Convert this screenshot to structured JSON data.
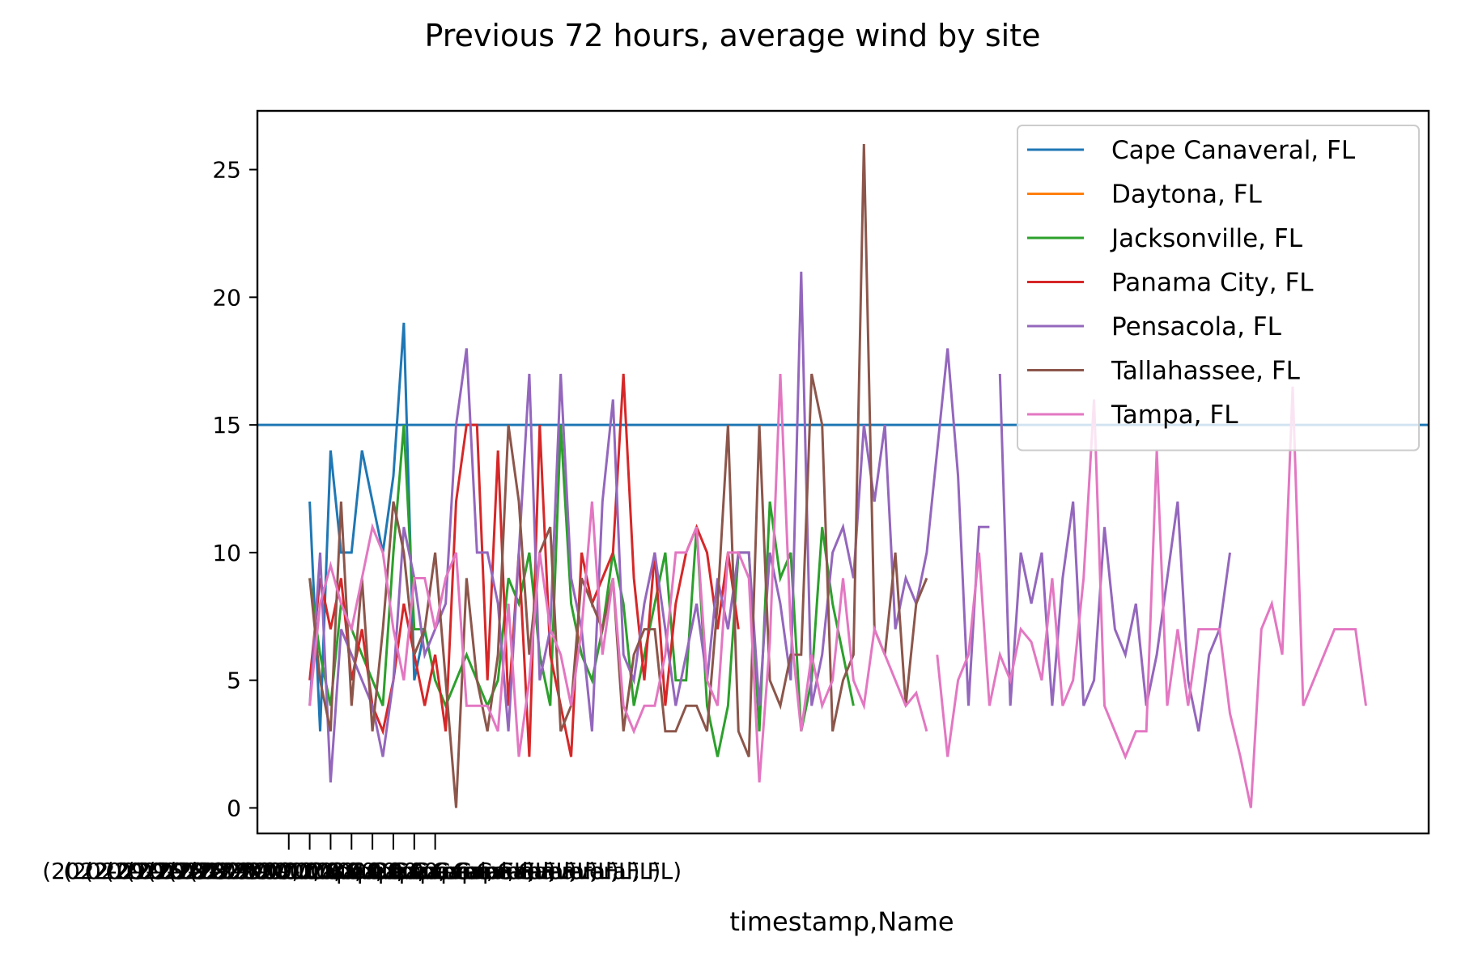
{
  "chart_data": {
    "type": "line",
    "title": "Previous 72 hours, average wind by site",
    "xlabel": "timestamp,Name",
    "ylabel": "",
    "ylim": [
      -1.0,
      27.3
    ],
    "xlim": [
      -3,
      109
    ],
    "yticks": [
      0,
      5,
      10,
      15,
      20,
      25
    ],
    "grid": false,
    "legend": "top-right",
    "xtick_labels": [
      "(2022-09-26 21:00:00, Cape Canaveral, FL)",
      "(2022-09-26 22:00:00, Cape Canaveral, FL)",
      "(2022-09-26 23:00:00, Cape Canaveral, FL)",
      "(2022-09-27 00:00:00, Cape Canaveral, FL)",
      "(2022-09-27 01:00:00, Cape Canaveral, FL)",
      "(2022-09-27 02:00:00, Cape Canaveral, FL)",
      "(2022-09-27 03:00:00, Cape Canaveral, FL)",
      "(2022-09-27 04:00:00, Cape Canaveral, FL)"
    ],
    "xtick_positions": [
      0,
      2,
      4,
      6,
      8,
      10,
      12,
      14
    ],
    "series": [
      {
        "name": "Cape Canaveral, FL",
        "color": "#1f77b4",
        "x": [
          -3,
          109
        ],
        "y": [
          15,
          15
        ]
      },
      {
        "name": "Cape Canaveral, FL",
        "color": "#1f77b4",
        "x": [
          2,
          3,
          4,
          5,
          6,
          7,
          8,
          9,
          10,
          11,
          12,
          13
        ],
        "y": [
          12,
          3,
          14,
          10,
          10,
          14,
          12,
          10,
          13,
          19,
          5,
          7
        ]
      },
      {
        "name": "Daytona, FL",
        "color": "#ff7f0e",
        "x": [],
        "y": []
      },
      {
        "name": "Jacksonville, FL",
        "color": "#2ca02c",
        "x": [
          2,
          3,
          4,
          5,
          6,
          7,
          8,
          9,
          10,
          11,
          12,
          13,
          14,
          15,
          16,
          17,
          18,
          19,
          20,
          21,
          22,
          23,
          24,
          25,
          26,
          27,
          28,
          29,
          30,
          31,
          32,
          33,
          34,
          35,
          36,
          37,
          38,
          39,
          40,
          41,
          42,
          43,
          44,
          45,
          46,
          47,
          48,
          49,
          50,
          51,
          52,
          53,
          54
        ],
        "y": [
          9,
          6,
          4,
          8,
          7,
          6,
          5,
          4,
          10,
          15,
          7,
          7,
          5,
          4,
          5,
          6,
          5,
          4,
          5,
          9,
          8,
          10,
          6,
          4,
          15,
          8,
          6,
          5,
          7,
          10,
          8,
          4,
          6,
          8,
          10,
          5,
          5,
          11,
          4,
          2,
          4,
          10,
          10,
          3,
          12,
          9,
          10,
          3,
          5,
          11,
          8,
          6,
          4
        ]
      },
      {
        "name": "Panama City, FL",
        "color": "#d62728",
        "x": [
          2,
          3,
          4,
          5,
          6,
          7,
          8,
          9,
          10,
          11,
          12,
          13,
          14,
          15,
          16,
          17,
          18,
          19,
          20,
          21,
          22,
          23,
          24,
          25,
          26,
          27,
          28,
          29,
          30,
          31,
          32,
          33,
          34,
          35,
          36,
          37,
          38,
          39,
          40,
          41,
          42,
          43
        ],
        "y": [
          5,
          9,
          7,
          9,
          5,
          7,
          4,
          3,
          5,
          8,
          6,
          4,
          6,
          3,
          12,
          15,
          15,
          5,
          14,
          4,
          10,
          2,
          15,
          6,
          4,
          2,
          10,
          8,
          9,
          10,
          17,
          9,
          5,
          10,
          4,
          8,
          10,
          11,
          10,
          7,
          10,
          7
        ]
      },
      {
        "name": "Pensacola, FL",
        "color": "#9467bd",
        "x": [
          2,
          3,
          4,
          5,
          6,
          7,
          8,
          9,
          10,
          11,
          12,
          13,
          14,
          15,
          16,
          17,
          18,
          19,
          20,
          21,
          22,
          23,
          24,
          25,
          26,
          27,
          28,
          29,
          30,
          31,
          32,
          33,
          34,
          35,
          36,
          37,
          38,
          39,
          40,
          41,
          42,
          43,
          44,
          45,
          46,
          47,
          48,
          49,
          50,
          51,
          52,
          53,
          54,
          55,
          56,
          57,
          58,
          59,
          60,
          61,
          62,
          63,
          64,
          65,
          66,
          67
        ],
        "y": [
          4,
          10,
          1,
          7,
          6,
          5,
          4,
          2,
          5,
          11,
          9,
          6,
          7,
          8,
          15,
          18,
          10,
          10,
          8,
          3,
          10,
          17,
          5,
          7,
          17,
          9,
          7,
          3,
          12,
          16,
          6,
          5,
          8,
          10,
          7,
          4,
          6,
          8,
          5,
          9,
          7,
          10,
          10,
          4,
          10,
          8,
          5,
          21,
          4,
          6,
          10,
          11,
          9,
          15,
          12,
          15,
          7,
          9,
          8,
          10,
          14,
          18,
          13,
          4,
          11,
          11
        ]
      },
      {
        "name": "Pensacola, FL",
        "color": "#9467bd",
        "x": [
          68,
          69,
          70,
          71,
          72,
          73,
          74,
          75,
          76,
          77,
          78,
          79,
          80,
          81,
          82,
          83,
          84,
          85,
          86,
          87,
          88,
          89,
          90
        ],
        "y": [
          17,
          4,
          10,
          8,
          10,
          4,
          9,
          12,
          4,
          5,
          11,
          7,
          6,
          8,
          4,
          6,
          9,
          12,
          5,
          3,
          6,
          7,
          10
        ]
      },
      {
        "name": "Tallahassee, FL",
        "color": "#8c564b",
        "x": [
          2,
          3,
          4,
          5,
          6,
          7,
          8,
          9,
          10,
          11,
          12,
          13,
          14,
          15,
          16,
          17,
          18,
          19,
          20,
          21,
          22,
          23,
          24,
          25,
          26,
          27,
          28,
          29,
          30,
          31,
          32,
          33,
          34,
          35,
          36,
          37,
          38,
          39,
          40,
          41,
          42,
          43,
          44,
          45,
          46,
          47,
          48,
          49,
          50,
          51,
          52,
          53,
          54,
          55,
          56,
          57,
          58,
          59,
          60,
          61
        ],
        "y": [
          9,
          5,
          3,
          12,
          4,
          9,
          3,
          7,
          12,
          10,
          6,
          7,
          10,
          5,
          0,
          9,
          5,
          3,
          6,
          15,
          12,
          6,
          10,
          11,
          3,
          4,
          9,
          8,
          7,
          9,
          3,
          6,
          7,
          7,
          3,
          3,
          4,
          4,
          3,
          8,
          15,
          3,
          2,
          15,
          5,
          4,
          6,
          6,
          17,
          15,
          3,
          5,
          6,
          26,
          7,
          6,
          10,
          4,
          8,
          9
        ]
      },
      {
        "name": "Tampa, FL",
        "color": "#e377c2",
        "x": [
          2,
          3,
          4,
          5,
          6,
          7,
          8,
          9,
          10,
          11,
          12,
          13,
          14,
          15,
          16,
          17,
          18,
          19,
          20,
          21,
          22,
          23,
          24,
          25,
          26,
          27,
          28,
          29,
          30,
          31,
          32,
          33,
          34,
          35,
          36,
          37,
          38,
          39,
          40,
          41,
          42,
          43,
          44,
          45,
          46,
          47,
          48,
          49,
          50,
          51,
          52,
          53,
          54,
          55,
          56,
          57,
          58,
          59,
          60,
          61
        ],
        "y": [
          4,
          8,
          9.5,
          8,
          7,
          9,
          11,
          10,
          7,
          5,
          9,
          9,
          7,
          9,
          10,
          4,
          4,
          4,
          3,
          8,
          2,
          5,
          10,
          7,
          6,
          4,
          7,
          12,
          6,
          9,
          4,
          3,
          4,
          4,
          6,
          10,
          10,
          11,
          5,
          4,
          10,
          10,
          9,
          1,
          6.5,
          17,
          7,
          3,
          6,
          4,
          5,
          9,
          5,
          4,
          7,
          6,
          5,
          4,
          4.5,
          3
        ]
      },
      {
        "name": "Tampa, FL",
        "color": "#e377c2",
        "x": [
          62,
          63,
          64,
          65,
          66,
          67,
          68,
          69,
          70,
          71,
          72,
          73,
          74,
          75,
          76,
          77,
          78,
          79,
          80,
          81,
          82,
          83,
          84,
          85,
          86,
          87,
          88,
          89,
          90,
          91,
          92,
          93,
          94,
          95,
          96,
          97,
          98,
          99,
          100,
          101,
          102,
          103
        ],
        "y": [
          6,
          2,
          5,
          6,
          10,
          4,
          6,
          5,
          7,
          6.5,
          5,
          9,
          4,
          5,
          9,
          16,
          4,
          3,
          2,
          3,
          3,
          14,
          4,
          7,
          4,
          7,
          7,
          7,
          3.7,
          2,
          0,
          7,
          8,
          6,
          16.5,
          4,
          5,
          6,
          7,
          7,
          7,
          4
        ]
      }
    ]
  }
}
